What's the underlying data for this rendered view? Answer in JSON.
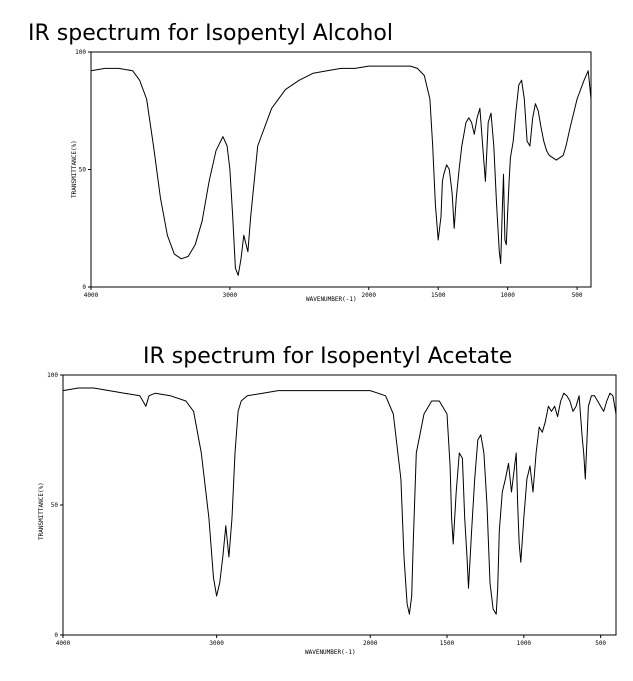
{
  "chart_data": [
    {
      "type": "line",
      "title": "IR spectrum for Isopentyl Alcohol",
      "xlabel": "WAVENUMBER(-1)",
      "ylabel": "TRANSMITTANCE(%)",
      "xlim": [
        4000,
        400
      ],
      "ylim": [
        0,
        100
      ],
      "x_ticks": [
        4000,
        3000,
        2000,
        1500,
        1000,
        500
      ],
      "x_tick_labels": [
        "4000",
        "3000",
        "2000",
        "1500",
        "1000",
        "500"
      ],
      "y_ticks": [
        0,
        50,
        100
      ],
      "y_tick_labels": [
        "0",
        "50",
        "100"
      ],
      "series": [
        {
          "x": [
            4000,
            3900,
            3800,
            3700,
            3650,
            3600,
            3550,
            3500,
            3450,
            3400,
            3350,
            3300,
            3250,
            3200,
            3150,
            3100,
            3050,
            3020,
            3000,
            2980,
            2960,
            2940,
            2920,
            2900,
            2870,
            2850,
            2800,
            2700,
            2600,
            2500,
            2400,
            2300,
            2200,
            2100,
            2000,
            1900,
            1800,
            1700,
            1650,
            1600,
            1560,
            1540,
            1520,
            1500,
            1480,
            1470,
            1460,
            1440,
            1420,
            1400,
            1385,
            1370,
            1350,
            1330,
            1300,
            1280,
            1260,
            1240,
            1220,
            1200,
            1180,
            1160,
            1140,
            1120,
            1100,
            1080,
            1060,
            1050,
            1040,
            1030,
            1020,
            1010,
            1000,
            990,
            980,
            960,
            940,
            920,
            900,
            880,
            860,
            840,
            820,
            800,
            780,
            760,
            740,
            720,
            700,
            650,
            600,
            580,
            550,
            500,
            450,
            420,
            400
          ],
          "values": [
            92,
            93,
            93,
            92,
            88,
            80,
            60,
            38,
            22,
            14,
            12,
            13,
            18,
            28,
            45,
            58,
            64,
            60,
            50,
            30,
            8,
            5,
            12,
            22,
            15,
            30,
            60,
            76,
            84,
            88,
            91,
            92,
            93,
            93,
            94,
            94,
            94,
            94,
            93,
            90,
            80,
            60,
            35,
            20,
            30,
            45,
            48,
            52,
            50,
            40,
            25,
            38,
            50,
            60,
            70,
            72,
            70,
            65,
            72,
            76,
            60,
            45,
            70,
            74,
            60,
            35,
            15,
            10,
            30,
            48,
            20,
            18,
            32,
            45,
            55,
            62,
            75,
            86,
            88,
            80,
            62,
            60,
            72,
            78,
            75,
            68,
            62,
            58,
            56,
            54,
            56,
            60,
            68,
            80,
            88,
            92,
            80
          ]
        }
      ]
    },
    {
      "type": "line",
      "title": "IR spectrum for Isopentyl Acetate",
      "xlabel": "WAVENUMBER(-1)",
      "ylabel": "TRANSMITTANCE(%)",
      "xlim": [
        4000,
        400
      ],
      "ylim": [
        0,
        100
      ],
      "x_ticks": [
        4000,
        3000,
        2000,
        1500,
        1000,
        500
      ],
      "x_tick_labels": [
        "4000",
        "3000",
        "2000",
        "1500",
        "1000",
        "500"
      ],
      "y_ticks": [
        0,
        50,
        100
      ],
      "y_tick_labels": [
        "0",
        "50",
        "100"
      ],
      "series": [
        {
          "x": [
            4000,
            3900,
            3800,
            3700,
            3600,
            3500,
            3460,
            3440,
            3400,
            3300,
            3200,
            3150,
            3100,
            3050,
            3020,
            3000,
            2980,
            2960,
            2940,
            2920,
            2900,
            2880,
            2860,
            2840,
            2800,
            2700,
            2600,
            2500,
            2400,
            2300,
            2200,
            2100,
            2000,
            1950,
            1900,
            1850,
            1800,
            1780,
            1760,
            1745,
            1730,
            1720,
            1700,
            1650,
            1600,
            1550,
            1500,
            1480,
            1470,
            1460,
            1440,
            1420,
            1400,
            1385,
            1370,
            1360,
            1340,
            1320,
            1300,
            1280,
            1260,
            1240,
            1230,
            1220,
            1200,
            1180,
            1170,
            1160,
            1140,
            1120,
            1100,
            1080,
            1060,
            1050,
            1040,
            1030,
            1020,
            1000,
            980,
            960,
            940,
            920,
            900,
            880,
            860,
            840,
            820,
            800,
            780,
            760,
            740,
            720,
            700,
            680,
            660,
            640,
            620,
            610,
            600,
            580,
            560,
            540,
            520,
            500,
            480,
            460,
            440,
            420,
            400
          ],
          "values": [
            94,
            95,
            95,
            94,
            93,
            92,
            88,
            92,
            93,
            92,
            90,
            86,
            70,
            45,
            22,
            15,
            20,
            30,
            42,
            30,
            45,
            70,
            86,
            90,
            92,
            93,
            94,
            94,
            94,
            94,
            94,
            94,
            94,
            93,
            92,
            85,
            60,
            30,
            12,
            8,
            15,
            35,
            70,
            85,
            90,
            90,
            85,
            65,
            45,
            35,
            55,
            70,
            68,
            45,
            30,
            18,
            40,
            60,
            75,
            77,
            70,
            50,
            35,
            20,
            10,
            8,
            18,
            40,
            55,
            60,
            66,
            55,
            65,
            70,
            50,
            35,
            28,
            45,
            60,
            65,
            55,
            70,
            80,
            78,
            82,
            88,
            86,
            88,
            84,
            90,
            93,
            92,
            90,
            86,
            88,
            92,
            76,
            70,
            60,
            88,
            92,
            92,
            90,
            88,
            86,
            90,
            93,
            92,
            85
          ]
        }
      ]
    }
  ]
}
